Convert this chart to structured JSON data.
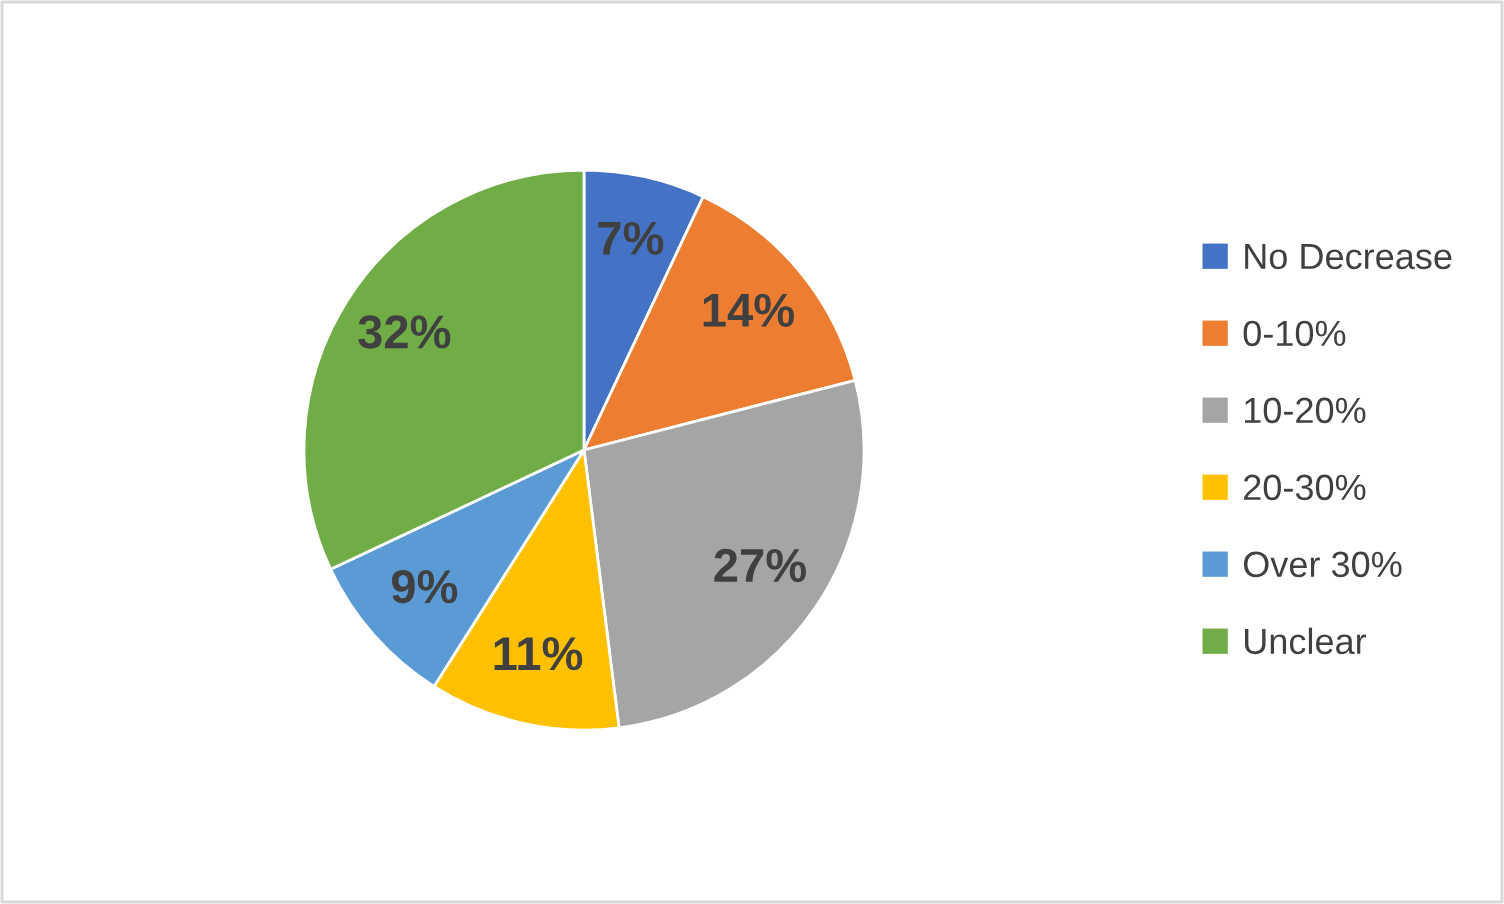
{
  "chart_data": {
    "type": "pie",
    "categories": [
      "No Decrease",
      "0-10%",
      "10-20%",
      "20-30%",
      "Over 30%",
      "Unclear"
    ],
    "values": [
      7,
      14,
      27,
      11,
      9,
      32
    ],
    "colors": [
      "#4472c4",
      "#ed7d31",
      "#a5a5a5",
      "#ffc000",
      "#5b9bd5",
      "#70ad47"
    ],
    "value_labels": [
      "7%",
      "14%",
      "27%",
      "11%",
      "9%",
      "32%"
    ],
    "legend": "right"
  }
}
